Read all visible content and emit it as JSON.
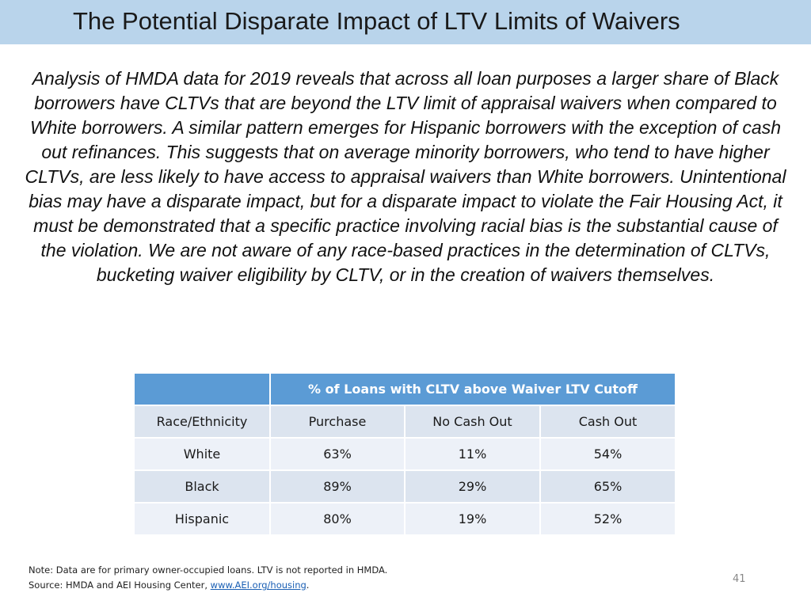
{
  "title": "The Potential Disparate Impact of LTV Limits of Waivers",
  "intro": "Analysis of HMDA data for 2019 reveals that across all loan purposes a larger share of Black borrowers have CLTVs that are beyond the LTV limit of appraisal waivers when compared to White borrowers. A similar pattern emerges for Hispanic borrowers with the exception of cash out refinances. This suggests that on average minority borrowers, who tend to have higher CLTVs, are less likely to have access to appraisal waivers than White borrowers. Unintentional bias may have a disparate impact, but for a disparate impact to violate the Fair Housing Act, it must be demonstrated that a specific practice involving racial bias is the substantial cause of the violation. We are not aware of any race-based practices in the determination of CLTVs, bucketing waiver eligibility by CLTV, or in the creation of waivers themselves.",
  "table": {
    "group_header": "% of Loans with CLTV above Waiver LTV Cutoff",
    "columns": [
      "Race/Ethnicity",
      "Purchase",
      "No Cash Out",
      "Cash Out"
    ],
    "rows": [
      [
        "White",
        "63%",
        "11%",
        "54%"
      ],
      [
        "Black",
        "89%",
        "29%",
        "65%"
      ],
      [
        "Hispanic",
        "80%",
        "19%",
        "52%"
      ]
    ]
  },
  "footnote": {
    "note": "Note: Data are for primary owner-occupied loans. LTV is not reported in HMDA.",
    "source_prefix": "Source: HMDA and AEI Housing Center, ",
    "source_link": "www.AEI.org/housing",
    "source_suffix": "."
  },
  "page_number": "41"
}
